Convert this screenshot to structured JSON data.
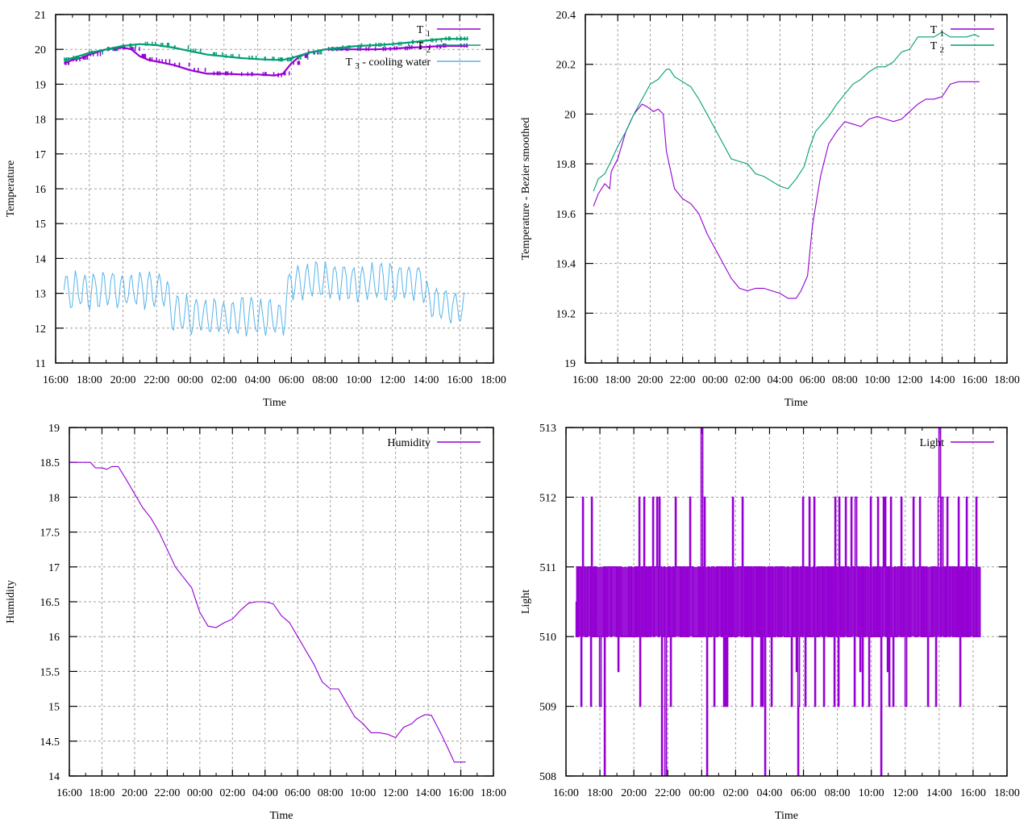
{
  "colors": {
    "t1": "#9400d3",
    "t2": "#009e73",
    "t3": "#56b4e9",
    "grid": "#a0a0a0"
  },
  "time_ticks": [
    "16:00",
    "18:00",
    "20:00",
    "22:00",
    "00:00",
    "02:00",
    "04:00",
    "06:00",
    "08:00",
    "10:00",
    "12:00",
    "14:00",
    "16:00",
    "18:00"
  ],
  "chart_data": [
    {
      "type": "line",
      "id": "temperature",
      "xlabel": "Time",
      "ylabel": "Temperature",
      "xlim_hours": [
        16,
        42
      ],
      "ylim": [
        11,
        21
      ],
      "yticks": [
        "11",
        "12",
        "13",
        "14",
        "15",
        "16",
        "17",
        "18",
        "19",
        "20",
        "21"
      ],
      "grid": true,
      "legend": "top-right",
      "series": [
        {
          "name": "T",
          "sub": "1",
          "color_key": "t1",
          "x": [
            16.5,
            17,
            17.5,
            18,
            19,
            20,
            20.5,
            21,
            21.5,
            22,
            23,
            0,
            1,
            2,
            3,
            4,
            5,
            5.5,
            6,
            6.5,
            7,
            8,
            9,
            10,
            11,
            12,
            13,
            14,
            15,
            16,
            16.5
          ],
          "y": [
            19.6,
            19.7,
            19.75,
            19.85,
            20.0,
            20.05,
            20.0,
            19.8,
            19.7,
            19.65,
            19.55,
            19.4,
            19.3,
            19.3,
            19.28,
            19.28,
            19.25,
            19.3,
            19.6,
            19.8,
            19.9,
            20.0,
            20.0,
            20.0,
            20.0,
            20.02,
            20.05,
            20.07,
            20.1,
            20.1,
            20.1
          ]
        },
        {
          "name": "T",
          "sub": "2",
          "color_key": "t2",
          "x": [
            16.5,
            17,
            18,
            19,
            20,
            21,
            22,
            23,
            0,
            1,
            2,
            3,
            4,
            5,
            5.5,
            6,
            7,
            8,
            9,
            10,
            11,
            12,
            13,
            14,
            15,
            16,
            16.5
          ],
          "y": [
            19.7,
            19.75,
            19.9,
            20.0,
            20.1,
            20.15,
            20.12,
            20.05,
            19.95,
            19.85,
            19.8,
            19.75,
            19.72,
            19.7,
            19.7,
            19.75,
            19.9,
            20.0,
            20.05,
            20.1,
            20.12,
            20.15,
            20.2,
            20.25,
            20.3,
            20.3,
            20.3
          ]
        },
        {
          "name": "T",
          "sub": "3",
          "suffix": " - cooling water",
          "color_key": "t3",
          "x": [
            16.5,
            22.5,
            23,
            5.5,
            6,
            12,
            13.8,
            14,
            16.4
          ],
          "y": [
            13.1,
            13.1,
            12.4,
            12.3,
            13.4,
            13.3,
            13.4,
            12.8,
            12.6
          ],
          "oscillation_amplitude": 0.5
        }
      ]
    },
    {
      "type": "line",
      "id": "temperature-smoothed",
      "xlabel": "Time",
      "ylabel": "Temperature - Bezier smoothed",
      "xlim_hours": [
        16,
        42
      ],
      "ylim": [
        19,
        20.4
      ],
      "yticks": [
        "19",
        "19.2",
        "19.4",
        "19.6",
        "19.8",
        "20",
        "20.2",
        "20.4"
      ],
      "grid": true,
      "legend": "top-right",
      "series": [
        {
          "name": "T",
          "sub": "1",
          "color_key": "t1",
          "x": [
            16.5,
            16.8,
            17.2,
            17.5,
            17.6,
            18,
            18.5,
            19,
            19.5,
            19.8,
            20.2,
            20.5,
            20.8,
            21,
            21.5,
            22,
            22.5,
            23,
            23.5,
            0,
            0.5,
            1,
            1.5,
            2,
            2.5,
            3,
            3.5,
            4,
            4.5,
            5,
            5.3,
            5.7,
            6,
            6.5,
            7,
            7.5,
            8,
            8.5,
            9,
            9.5,
            10,
            10.5,
            11,
            11.5,
            12,
            12.5,
            13,
            13.5,
            14,
            14.5,
            15,
            15.5,
            16,
            16.3
          ],
          "y": [
            19.63,
            19.68,
            19.72,
            19.7,
            19.77,
            19.82,
            19.93,
            20.0,
            20.04,
            20.03,
            20.01,
            20.02,
            20.0,
            19.85,
            19.7,
            19.66,
            19.64,
            19.6,
            19.52,
            19.46,
            19.4,
            19.34,
            19.3,
            19.29,
            19.3,
            19.3,
            19.29,
            19.28,
            19.26,
            19.26,
            19.29,
            19.35,
            19.55,
            19.75,
            19.88,
            19.93,
            19.97,
            19.96,
            19.95,
            19.98,
            19.99,
            19.98,
            19.97,
            19.98,
            20.01,
            20.04,
            20.06,
            20.06,
            20.07,
            20.12,
            20.13,
            20.13,
            20.13,
            20.13
          ]
        },
        {
          "name": "T",
          "sub": "2",
          "color_key": "t2",
          "x": [
            16.5,
            16.8,
            17.2,
            17.5,
            18,
            18.5,
            19,
            19.5,
            20,
            20.5,
            21,
            21.2,
            21.5,
            22,
            22.5,
            23,
            23.5,
            0,
            0.5,
            1,
            1.5,
            2,
            2.5,
            3,
            3.5,
            4,
            4.5,
            5,
            5.5,
            5.8,
            6.2,
            7,
            7.5,
            8,
            8.5,
            9,
            9.5,
            10,
            10.5,
            11,
            11.5,
            12,
            12.5,
            13,
            13.5,
            14,
            14.5,
            15,
            15.5,
            16,
            16.3
          ],
          "y": [
            19.69,
            19.74,
            19.76,
            19.8,
            19.87,
            19.93,
            20.0,
            20.06,
            20.12,
            20.14,
            20.18,
            20.18,
            20.15,
            20.13,
            20.11,
            20.06,
            20.0,
            19.94,
            19.88,
            19.82,
            19.81,
            19.8,
            19.76,
            19.75,
            19.73,
            19.71,
            19.7,
            19.74,
            19.79,
            19.86,
            19.93,
            19.99,
            20.04,
            20.08,
            20.12,
            20.14,
            20.17,
            20.19,
            20.19,
            20.21,
            20.25,
            20.26,
            20.31,
            20.31,
            20.31,
            20.33,
            20.31,
            20.31,
            20.31,
            20.32,
            20.31
          ]
        }
      ]
    },
    {
      "type": "line",
      "id": "humidity",
      "xlabel": "Time",
      "ylabel": "Humidity",
      "xlim_hours": [
        16,
        42
      ],
      "ylim": [
        14,
        19
      ],
      "yticks": [
        "14",
        "14.5",
        "15",
        "15.5",
        "16",
        "16.5",
        "17",
        "17.5",
        "18",
        "18.5",
        "19"
      ],
      "grid": true,
      "legend": "top-right",
      "series": [
        {
          "name": "Humidity",
          "color_key": "t1",
          "x": [
            16,
            17,
            17.3,
            17.6,
            18,
            18.3,
            18.6,
            19,
            19.5,
            20,
            20.5,
            21,
            21.5,
            22,
            22.5,
            23,
            23.5,
            0,
            0.5,
            1,
            1.5,
            2,
            2.5,
            3,
            3.5,
            4,
            4.5,
            5,
            5.5,
            6,
            6.5,
            7,
            7.5,
            8,
            8.5,
            9,
            9.5,
            10,
            10.5,
            11,
            11.5,
            12,
            12.5,
            13,
            13.3,
            13.8,
            14.2,
            14.8,
            15.2,
            15.6,
            16,
            16.3
          ],
          "y": [
            18.5,
            18.5,
            18.5,
            18.42,
            18.42,
            18.4,
            18.44,
            18.44,
            18.25,
            18.05,
            17.85,
            17.7,
            17.5,
            17.25,
            17.0,
            16.85,
            16.7,
            16.35,
            16.15,
            16.13,
            16.2,
            16.25,
            16.38,
            16.48,
            16.5,
            16.5,
            16.47,
            16.3,
            16.2,
            16.0,
            15.8,
            15.6,
            15.35,
            15.25,
            15.25,
            15.05,
            14.85,
            14.75,
            14.62,
            14.62,
            14.6,
            14.55,
            14.7,
            14.75,
            14.82,
            14.88,
            14.87,
            14.6,
            14.4,
            14.2,
            14.2,
            14.2
          ]
        }
      ]
    },
    {
      "type": "line",
      "id": "light",
      "xlabel": "Time",
      "ylabel": "Light",
      "xlim_hours": [
        16,
        42
      ],
      "ylim": [
        508,
        513
      ],
      "yticks": [
        "508",
        "509",
        "510",
        "511",
        "512",
        "513"
      ],
      "grid": true,
      "legend": "top-right",
      "series": [
        {
          "name": "Light",
          "color_key": "t1",
          "x_range_hours": [
            16.6,
            16.5
          ],
          "base_band": [
            510,
            511
          ],
          "spike_max": 513,
          "spike_min": 508
        }
      ]
    }
  ]
}
